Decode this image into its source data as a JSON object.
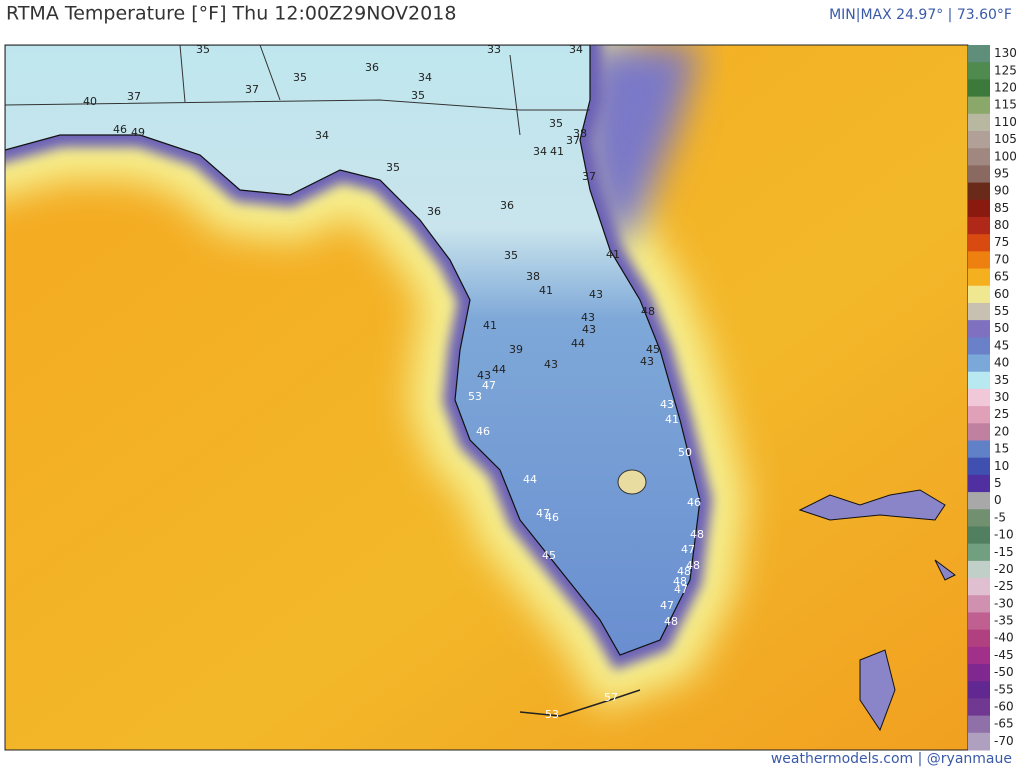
{
  "header": {
    "title": "RTMA Temperature [°F]  Thu 12:00Z29NOV2018",
    "minmax": "MIN|MAX 24.97° | 73.60°F"
  },
  "colorbar": {
    "ticks": [
      130,
      125,
      120,
      115,
      110,
      105,
      100,
      95,
      90,
      85,
      80,
      75,
      70,
      65,
      60,
      55,
      50,
      45,
      40,
      35,
      30,
      25,
      20,
      15,
      10,
      5,
      0,
      -5,
      -10,
      -15,
      -20,
      -25,
      -30,
      -35,
      -40,
      -45,
      -50,
      -55,
      -60,
      -65,
      -70
    ],
    "colors": [
      "#5f8f7a",
      "#4f8a4f",
      "#3c7a3c",
      "#8aa86a",
      "#b8b8a0",
      "#b0a098",
      "#a08880",
      "#8a6a60",
      "#6a2a1a",
      "#8a1a10",
      "#b02818",
      "#d84a10",
      "#ee8010",
      "#f5b020",
      "#f0e890",
      "#c8c0b0",
      "#8070c0",
      "#6a80c8",
      "#7aa8d8",
      "#b8e8f0",
      "#f0c8d8",
      "#e0a0b8",
      "#c080a0",
      "#6080c8",
      "#4050b0",
      "#5030a0",
      "#a8a8a8",
      "#709070",
      "#508060",
      "#70a080",
      "#c0d0c8",
      "#e0c0d0",
      "#d090b0",
      "#c06090",
      "#b04080",
      "#a0308a",
      "#802890",
      "#602890",
      "#703890",
      "#9070a8",
      "#b0a0c0"
    ]
  },
  "stations": [
    35,
    33,
    34,
    36,
    34,
    35,
    40,
    37,
    37,
    35,
    34,
    35,
    38,
    37,
    34,
    41,
    37,
    35,
    36,
    36,
    35,
    41,
    38,
    41,
    43,
    43,
    43,
    41,
    44,
    39,
    43,
    44,
    43,
    48,
    45,
    43,
    47,
    53,
    43,
    41,
    46,
    50,
    44,
    46,
    47,
    46,
    45,
    48,
    47,
    48,
    48,
    48,
    47,
    47,
    48,
    53,
    57,
    49,
    46
  ],
  "footer": "weathermodels.com | @ryanmaue"
}
